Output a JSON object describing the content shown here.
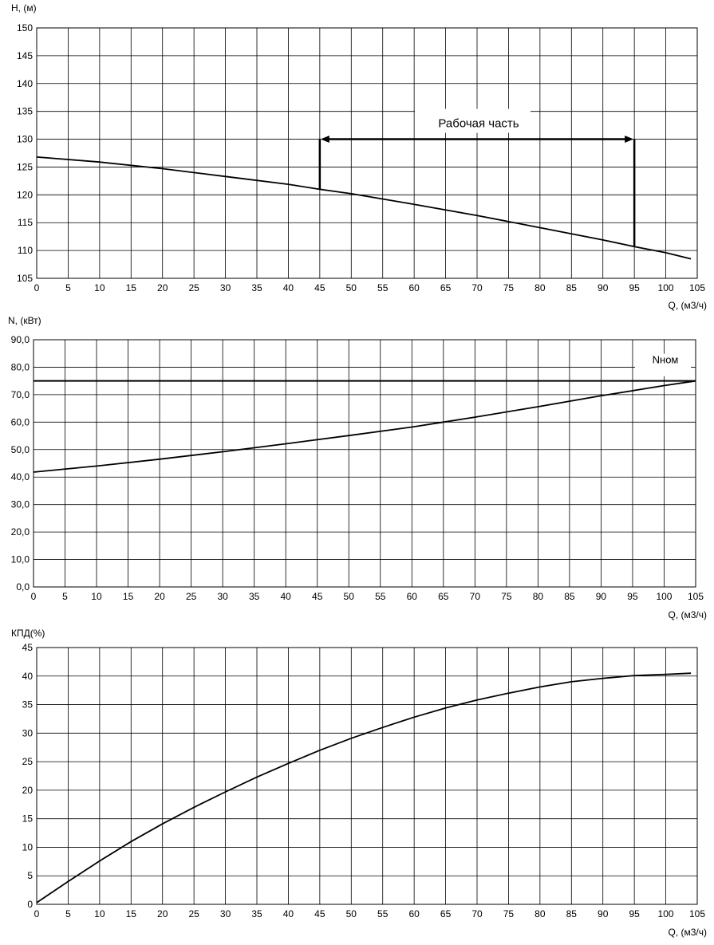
{
  "chart_data": [
    {
      "type": "line",
      "ylabel": "H, (м)",
      "xlabel": "Q, (м3/ч)",
      "xlim": [
        0,
        105
      ],
      "ylim": [
        105,
        150
      ],
      "x_ticks": [
        "0",
        "5",
        "10",
        "15",
        "20",
        "25",
        "30",
        "35",
        "40",
        "45",
        "50",
        "55",
        "60",
        "65",
        "70",
        "75",
        "80",
        "85",
        "90",
        "95",
        "100",
        "105"
      ],
      "y_ticks": [
        "105",
        "110",
        "115",
        "120",
        "125",
        "130",
        "135",
        "140",
        "145",
        "150"
      ],
      "grid": true,
      "series": [
        {
          "x": [
            0,
            10,
            20,
            30,
            40,
            45,
            50,
            60,
            70,
            80,
            90,
            95,
            100,
            104
          ],
          "y": [
            126.8,
            125.9,
            124.7,
            123.3,
            121.9,
            121.0,
            120.2,
            118.3,
            116.3,
            114.1,
            111.9,
            110.7,
            109.6,
            108.5
          ]
        }
      ],
      "annotations": [
        {
          "text": "Рабочая часть",
          "x": 45,
          "x_end": 95,
          "y": 130,
          "x_start_curve_y": 121.0,
          "x_end_curve_y": 110.7
        }
      ]
    },
    {
      "type": "line",
      "ylabel": "N, (кВт)",
      "xlabel": "Q, (м3/ч)",
      "xlim": [
        0,
        105
      ],
      "ylim": [
        0,
        90
      ],
      "x_ticks": [
        "0",
        "5",
        "10",
        "15",
        "20",
        "25",
        "30",
        "35",
        "40",
        "45",
        "50",
        "55",
        "60",
        "65",
        "70",
        "75",
        "80",
        "85",
        "90",
        "95",
        "100",
        "105"
      ],
      "y_ticks": [
        "0,0",
        "10,0",
        "20,0",
        "30,0",
        "40,0",
        "50,0",
        "60,0",
        "70,0",
        "80,0",
        "90,0"
      ],
      "grid": true,
      "series": [
        {
          "x": [
            0,
            10,
            20,
            30,
            40,
            50,
            60,
            65,
            70,
            80,
            90,
            100,
            105
          ],
          "y": [
            41.8,
            44.0,
            46.5,
            49.2,
            52.1,
            55.1,
            58.2,
            60.0,
            61.8,
            65.6,
            69.6,
            73.3,
            75.0
          ]
        }
      ],
      "reference_line": {
        "label": "Nном",
        "y": 75
      }
    },
    {
      "type": "line",
      "ylabel": "КПД(%)",
      "xlabel": "Q, (м3/ч)",
      "xlim": [
        0,
        105
      ],
      "ylim": [
        0,
        45
      ],
      "x_ticks": [
        "0",
        "5",
        "10",
        "15",
        "20",
        "25",
        "30",
        "35",
        "40",
        "45",
        "50",
        "55",
        "60",
        "65",
        "70",
        "75",
        "80",
        "85",
        "90",
        "95",
        "100",
        "105"
      ],
      "y_ticks": [
        "0",
        "5",
        "10",
        "15",
        "20",
        "25",
        "30",
        "35",
        "40",
        "45"
      ],
      "grid": true,
      "series": [
        {
          "x": [
            0,
            5,
            10,
            15,
            20,
            25,
            30,
            35,
            40,
            45,
            50,
            55,
            60,
            65,
            70,
            75,
            80,
            85,
            90,
            95,
            100,
            104
          ],
          "y": [
            0.3,
            4.0,
            7.6,
            11.0,
            14.1,
            17.0,
            19.7,
            22.3,
            24.7,
            27.0,
            29.1,
            31.0,
            32.8,
            34.4,
            35.8,
            37.0,
            38.1,
            39.0,
            39.6,
            40.1,
            40.3,
            40.5
          ]
        }
      ]
    }
  ]
}
